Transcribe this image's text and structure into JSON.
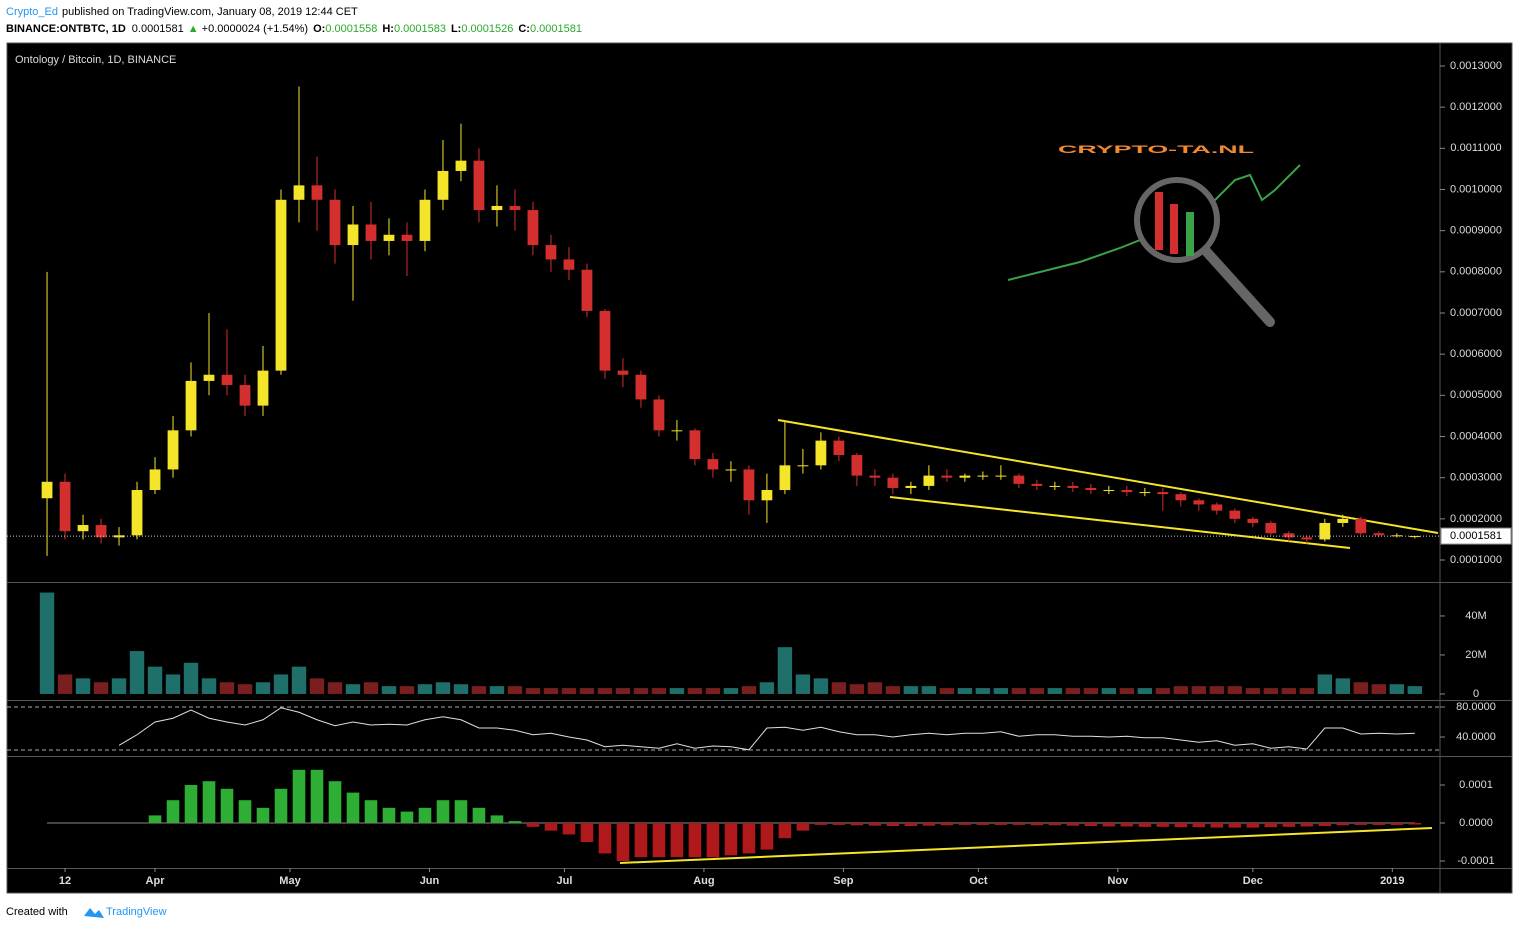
{
  "header": {
    "author": "Crypto_Ed",
    "published": "published on TradingView.com, January 08, 2019 12:44 CET",
    "symbol": "BINANCE:ONTBTC, 1D",
    "last": "0.0001581",
    "arrow": "▲",
    "change": "+0.0000024 (+1.54%)",
    "o_label": "O:",
    "o": "0.0001558",
    "h_label": "H:",
    "h": "0.0001583",
    "l_label": "L:",
    "l": "0.0001526",
    "c_label": "C:",
    "c": "0.0001581"
  },
  "logo": "CRYPTO-TA.NL",
  "footer": {
    "created": "Created with",
    "brand": "TradingView"
  },
  "chart_data": [
    {
      "type": "candlestick",
      "title": "Ontology / Bitcoin, 1D, BINANCE",
      "up_color": "#f5e52a",
      "down_color": "#d32f2f",
      "x": [
        7,
        11,
        15,
        19,
        23,
        27,
        31,
        35,
        39,
        43,
        47,
        51,
        55,
        59,
        63,
        67,
        71,
        75,
        79,
        83,
        87,
        91,
        95,
        99,
        103,
        107,
        111,
        115,
        119,
        123,
        127,
        131,
        135,
        139,
        143,
        147,
        151,
        155,
        159,
        163,
        167,
        171,
        175,
        179,
        183,
        187,
        191,
        195,
        199,
        203,
        207,
        211,
        215,
        219,
        223,
        227,
        231,
        235,
        239,
        243,
        247,
        251,
        255,
        259,
        263,
        267,
        271,
        275,
        279,
        283,
        287,
        291,
        295,
        299,
        303,
        307,
        311
      ],
      "open": [
        0.00025,
        0.00029,
        0.00017,
        0.000185,
        0.000155,
        0.00016,
        0.00027,
        0.00032,
        0.000415,
        0.000535,
        0.00055,
        0.000525,
        0.000475,
        0.00056,
        0.000975,
        0.00101,
        0.000975,
        0.000865,
        0.000915,
        0.000875,
        0.00089,
        0.000875,
        0.000975,
        0.001045,
        0.00107,
        0.00095,
        0.00096,
        0.00095,
        0.000865,
        0.00083,
        0.000805,
        0.000705,
        0.00056,
        0.00055,
        0.00049,
        0.000415,
        0.000415,
        0.000345,
        0.00032,
        0.00032,
        0.000245,
        0.00027,
        0.00033,
        0.00033,
        0.00039,
        0.000355,
        0.000305,
        0.0003,
        0.000275,
        0.00028,
        0.000305,
        0.0003,
        0.000305,
        0.000305,
        0.000305,
        0.000285,
        0.00028,
        0.00028,
        0.000275,
        0.00027,
        0.00027,
        0.000265,
        0.000265,
        0.00026,
        0.000245,
        0.000235,
        0.00022,
        0.0002,
        0.00019,
        0.000165,
        0.000155,
        0.00015,
        0.00019,
        0.0002,
        0.000165,
        0.00016,
        0.0001558
      ],
      "high": [
        0.0008,
        0.00031,
        0.00021,
        0.0002,
        0.00018,
        0.00029,
        0.00035,
        0.00045,
        0.00058,
        0.0007,
        0.00066,
        0.00055,
        0.00062,
        0.001,
        0.00125,
        0.00108,
        0.001,
        0.00096,
        0.00097,
        0.00093,
        0.00092,
        0.001,
        0.00112,
        0.00116,
        0.0011,
        0.00101,
        0.001,
        0.00097,
        0.00089,
        0.00086,
        0.00082,
        0.00071,
        0.00059,
        0.00056,
        0.0005,
        0.00044,
        0.00042,
        0.00036,
        0.00034,
        0.00033,
        0.00031,
        0.000435,
        0.00037,
        0.00041,
        0.0004,
        0.00036,
        0.00032,
        0.00031,
        0.00029,
        0.00033,
        0.00032,
        0.00031,
        0.000315,
        0.00033,
        0.00031,
        0.000295,
        0.00029,
        0.00029,
        0.000285,
        0.00028,
        0.00028,
        0.000275,
        0.000275,
        0.000265,
        0.00025,
        0.00024,
        0.000225,
        0.000205,
        0.000195,
        0.00017,
        0.00016,
        0.0002,
        0.00021,
        0.000205,
        0.00017,
        0.000165,
        0.0001583
      ],
      "low": [
        0.00011,
        0.00015,
        0.00015,
        0.00014,
        0.000135,
        0.00015,
        0.00026,
        0.0003,
        0.0004,
        0.0005,
        0.0005,
        0.00045,
        0.00045,
        0.00055,
        0.00092,
        0.0009,
        0.00082,
        0.00073,
        0.00083,
        0.00084,
        0.00079,
        0.00085,
        0.00095,
        0.00102,
        0.00092,
        0.00091,
        0.0009,
        0.00084,
        0.0008,
        0.00078,
        0.00069,
        0.00054,
        0.00052,
        0.00047,
        0.0004,
        0.00039,
        0.00033,
        0.0003,
        0.00029,
        0.00021,
        0.00019,
        0.00026,
        0.00031,
        0.00032,
        0.00034,
        0.00028,
        0.00028,
        0.00026,
        0.00026,
        0.00027,
        0.00029,
        0.00029,
        0.000295,
        0.000295,
        0.000275,
        0.00027,
        0.00027,
        0.000265,
        0.00026,
        0.00026,
        0.000255,
        0.000255,
        0.00022,
        0.00023,
        0.00022,
        0.00021,
        0.00019,
        0.00018,
        0.00016,
        0.000145,
        0.00014,
        0.000145,
        0.00018,
        0.00016,
        0.000155,
        0.000155,
        0.0001526
      ],
      "close": [
        0.00029,
        0.00017,
        0.000185,
        0.000155,
        0.00016,
        0.00027,
        0.00032,
        0.000415,
        0.000535,
        0.00055,
        0.000525,
        0.000475,
        0.00056,
        0.000975,
        0.00101,
        0.000975,
        0.000865,
        0.000915,
        0.000875,
        0.00089,
        0.000875,
        0.000975,
        0.001045,
        0.00107,
        0.00095,
        0.00096,
        0.00095,
        0.000865,
        0.00083,
        0.000805,
        0.000705,
        0.00056,
        0.00055,
        0.00049,
        0.000415,
        0.000415,
        0.000345,
        0.00032,
        0.00032,
        0.000245,
        0.00027,
        0.00033,
        0.00033,
        0.00039,
        0.000355,
        0.000305,
        0.0003,
        0.000275,
        0.00028,
        0.000305,
        0.0003,
        0.000305,
        0.000305,
        0.000305,
        0.000285,
        0.00028,
        0.00028,
        0.000275,
        0.00027,
        0.00027,
        0.000265,
        0.000265,
        0.00026,
        0.000245,
        0.000235,
        0.00022,
        0.0002,
        0.00019,
        0.000165,
        0.000155,
        0.00015,
        0.00019,
        0.0002,
        0.000165,
        0.00016,
        0.00016,
        0.0001581
      ],
      "xlim": [
        -1.9,
        316.6
      ],
      "ylim": [
        4.66e-05,
        0.0013558
      ],
      "yticks": [
        {
          "value": 0.0001,
          "label": "0.0001000"
        },
        {
          "value": 0.0002,
          "label": "0.0002000"
        },
        {
          "value": 0.0003,
          "label": "0.0003000"
        },
        {
          "value": 0.0004,
          "label": "0.0004000"
        },
        {
          "value": 0.0005,
          "label": "0.0005000"
        },
        {
          "value": 0.0006,
          "label": "0.0006000"
        },
        {
          "value": 0.0007,
          "label": "0.0007000"
        },
        {
          "value": 0.0008,
          "label": "0.0008000"
        },
        {
          "value": 0.0009,
          "label": "0.0009000"
        },
        {
          "value": 0.001,
          "label": "0.0010000"
        },
        {
          "value": 0.0011,
          "label": "0.0011000"
        },
        {
          "value": 0.0012,
          "label": "0.0012000"
        },
        {
          "value": 0.0013,
          "label": "0.0013000"
        }
      ]
    },
    {
      "type": "bar",
      "up_color": "#1f6f6a",
      "down_color": "#7a1f1f",
      "x": [
        7,
        11,
        15,
        19,
        23,
        27,
        31,
        35,
        39,
        43,
        47,
        51,
        55,
        59,
        63,
        67,
        71,
        75,
        79,
        83,
        87,
        91,
        95,
        99,
        103,
        107,
        111,
        115,
        119,
        123,
        127,
        131,
        135,
        139,
        143,
        147,
        151,
        155,
        159,
        163,
        167,
        171,
        175,
        179,
        183,
        187,
        191,
        195,
        199,
        203,
        207,
        211,
        215,
        219,
        223,
        227,
        231,
        235,
        239,
        243,
        247,
        251,
        255,
        259,
        263,
        267,
        271,
        275,
        279,
        283,
        287,
        291,
        295,
        299,
        303,
        307,
        311
      ],
      "values": [
        52000000,
        10000000,
        8000000,
        6000000,
        8000000,
        22000000,
        14000000,
        10000000,
        16000000,
        8000000,
        6000000,
        5000000,
        6000000,
        10000000,
        14000000,
        8000000,
        6000000,
        5000000,
        6000000,
        4000000,
        4000000,
        5000000,
        6000000,
        5000000,
        4000000,
        4000000,
        4000000,
        3000000,
        3000000,
        3000000,
        3000000,
        3000000,
        3000000,
        3000000,
        3000000,
        3000000,
        3000000,
        3000000,
        3000000,
        4000000,
        6000000,
        24000000,
        10000000,
        8000000,
        6000000,
        5000000,
        6000000,
        4000000,
        4000000,
        4000000,
        3000000,
        3000000,
        3000000,
        3000000,
        3000000,
        3000000,
        3000000,
        3000000,
        3000000,
        3000000,
        3000000,
        3000000,
        3000000,
        4000000,
        4000000,
        4000000,
        4000000,
        3000000,
        3000000,
        3000000,
        3000000,
        10000000,
        8000000,
        6000000,
        5000000,
        5000000,
        4000000
      ],
      "xlim": [
        -1.9,
        316.6
      ],
      "ylim": [
        -3100000,
        56900000
      ],
      "yticks": [
        {
          "value": 0,
          "label": "0"
        },
        {
          "value": 20000000,
          "label": "20M"
        },
        {
          "value": 40000000,
          "label": "40M"
        }
      ]
    },
    {
      "type": "line",
      "color": "#e0e0e0",
      "x": [
        7,
        11,
        15,
        19,
        23,
        27,
        31,
        35,
        39,
        43,
        47,
        51,
        55,
        59,
        63,
        67,
        71,
        75,
        79,
        83,
        87,
        91,
        95,
        99,
        103,
        107,
        111,
        115,
        119,
        123,
        127,
        131,
        135,
        139,
        143,
        147,
        151,
        155,
        159,
        163,
        167,
        171,
        175,
        179,
        183,
        187,
        191,
        195,
        199,
        203,
        207,
        211,
        215,
        219,
        223,
        227,
        231,
        235,
        239,
        243,
        247,
        251,
        255,
        259,
        263,
        267,
        271,
        275,
        279,
        283,
        287,
        291,
        295,
        299,
        303,
        307,
        311
      ],
      "values": [
        null,
        null,
        null,
        null,
        29,
        43,
        60,
        65,
        76,
        65,
        60,
        56,
        63,
        79,
        73,
        63,
        55,
        60,
        56,
        57,
        56,
        63,
        67,
        63,
        52,
        52,
        49,
        43,
        45,
        40,
        36,
        27,
        29,
        27,
        25,
        31,
        25,
        28,
        27,
        23,
        52,
        53,
        49,
        53,
        47,
        43,
        43,
        40,
        43,
        45,
        43,
        45,
        45,
        47,
        41,
        43,
        43,
        41,
        41,
        40,
        41,
        39,
        39,
        36,
        33,
        35,
        29,
        31,
        25,
        27,
        24,
        52,
        52,
        44,
        45,
        44,
        45
      ],
      "xlim": [
        -1.9,
        316.6
      ],
      "ylim": [
        14.7,
        88
      ],
      "yticks": [
        {
          "value": 40,
          "label": "40.0000"
        },
        {
          "value": 80,
          "label": "80.0000"
        }
      ]
    },
    {
      "type": "histogram",
      "pos_color": "#2eae34",
      "neg_color": "#b0191c",
      "x": [
        7,
        11,
        15,
        19,
        23,
        27,
        31,
        35,
        39,
        43,
        47,
        51,
        55,
        59,
        63,
        67,
        71,
        75,
        79,
        83,
        87,
        91,
        95,
        99,
        103,
        107,
        111,
        115,
        119,
        123,
        127,
        131,
        135,
        139,
        143,
        147,
        151,
        155,
        159,
        163,
        167,
        171,
        175,
        179,
        183,
        187,
        191,
        195,
        199,
        203,
        207,
        211,
        215,
        219,
        223,
        227,
        231,
        235,
        239,
        243,
        247,
        251,
        255,
        259,
        263,
        267,
        271,
        275,
        279,
        283,
        287,
        291,
        295,
        299,
        303,
        307,
        311
      ],
      "values": [
        null,
        null,
        null,
        null,
        null,
        null,
        2e-05,
        6e-05,
        0.0001,
        0.00011,
        9e-05,
        6e-05,
        4e-05,
        9e-05,
        0.00014,
        0.00014,
        0.00011,
        8e-05,
        6e-05,
        4e-05,
        3e-05,
        4e-05,
        6e-05,
        6e-05,
        4e-05,
        2e-05,
        5e-06,
        -1e-05,
        -2e-05,
        -3e-05,
        -5e-05,
        -8e-05,
        -0.0001,
        -9e-05,
        -9e-05,
        -9e-05,
        -9e-05,
        -9e-05,
        -8.5e-05,
        -8e-05,
        -7e-05,
        -4e-05,
        -2e-05,
        -5e-06,
        -5e-06,
        -6e-06,
        -7e-06,
        -8e-06,
        -8e-06,
        -7e-06,
        -6e-06,
        -5e-06,
        -5e-06,
        -5e-06,
        -5e-06,
        -6e-06,
        -6e-06,
        -7e-06,
        -8e-06,
        -9e-06,
        -9e-06,
        -1e-05,
        -1e-05,
        -1.1e-05,
        -1.1e-05,
        -1.2e-05,
        -1.2e-05,
        -1.2e-05,
        -1.1e-05,
        -1e-05,
        -9e-06,
        -8e-06,
        -6e-06,
        -5e-06,
        -5e-06,
        -5e-06,
        -4e-06
      ],
      "xlim": [
        -1.9,
        316.6
      ],
      "ylim": [
        -0.0001184,
        0.0001737
      ],
      "yticks": [
        {
          "value": -0.0001,
          "label": "-0.0001"
        },
        {
          "value": 0,
          "label": "0.0000"
        },
        {
          "value": 0.0001,
          "label": "0.0001"
        }
      ],
      "xticks": [
        {
          "value": 11,
          "label": "12"
        },
        {
          "value": 31,
          "label": "Apr"
        },
        {
          "value": 61,
          "label": "May"
        },
        {
          "value": 92,
          "label": "Jun"
        },
        {
          "value": 122,
          "label": "Jul"
        },
        {
          "value": 153,
          "label": "Aug"
        },
        {
          "value": 184,
          "label": "Sep"
        },
        {
          "value": 214,
          "label": "Oct"
        },
        {
          "value": 245,
          "label": "Nov"
        },
        {
          "value": 275,
          "label": "Dec"
        },
        {
          "value": 306,
          "label": "2019"
        }
      ]
    }
  ]
}
